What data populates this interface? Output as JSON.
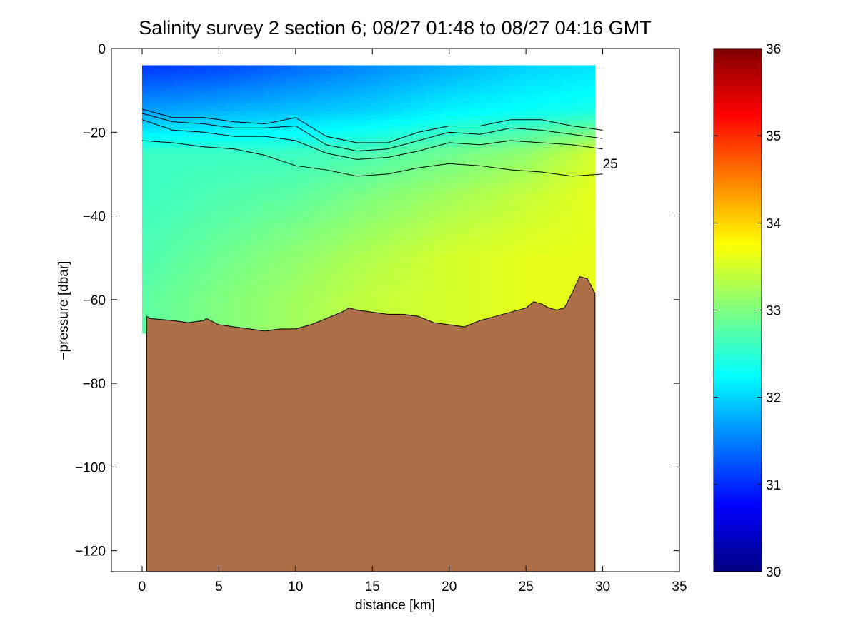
{
  "chart_data": {
    "type": "heatmap",
    "title": "Salinity survey 2 section 6; 08/27 01:48 to 08/27 04:16 GMT",
    "xlabel": "distance [km]",
    "ylabel": "−pressure [dbar]",
    "xlim": [
      -2,
      35
    ],
    "ylim": [
      -125,
      0
    ],
    "x_ticks": [
      0,
      5,
      10,
      15,
      20,
      25,
      30,
      35
    ],
    "x_tick_labels": [
      "0",
      "5",
      "10",
      "15",
      "20",
      "25",
      "30",
      "35"
    ],
    "y_ticks": [
      0,
      -20,
      -40,
      -60,
      -80,
      -100,
      -120
    ],
    "y_tick_labels": [
      "0",
      "−20",
      "−40",
      "−60",
      "−80",
      "−100",
      "−120"
    ],
    "colorbar": {
      "range": [
        30,
        36
      ],
      "ticks": [
        30,
        31,
        32,
        33,
        34,
        35,
        36
      ],
      "tick_labels": [
        "30",
        "31",
        "32",
        "33",
        "34",
        "35",
        "36"
      ],
      "colormap": "jet"
    },
    "salinity_field": {
      "x": [
        0,
        5,
        10,
        15,
        20,
        25,
        29.5
      ],
      "depth": [
        -5,
        -15,
        -25,
        -35,
        -50,
        -60
      ],
      "values": [
        [
          31.1,
          31.2,
          31.4,
          31.6,
          31.8,
          32.0,
          32.1
        ],
        [
          31.7,
          31.8,
          31.9,
          32.0,
          32.2,
          32.3,
          32.4
        ],
        [
          32.6,
          32.6,
          32.6,
          32.7,
          32.9,
          33.1,
          33.5
        ],
        [
          32.6,
          32.7,
          32.8,
          33.0,
          33.2,
          33.4,
          33.6
        ],
        [
          32.7,
          32.9,
          33.1,
          33.3,
          33.5,
          33.6,
          33.6
        ],
        [
          32.8,
          33.0,
          33.2,
          33.4,
          33.5,
          33.6,
          33.6
        ]
      ]
    },
    "contour_label": "25",
    "contour_lines": [
      {
        "x": [
          0,
          2,
          4,
          6,
          8,
          10,
          12,
          14,
          16,
          18,
          20,
          22,
          24,
          26,
          28,
          30
        ],
        "y": [
          -14.5,
          -16.5,
          -16.5,
          -17.5,
          -18.0,
          -16.5,
          -21.0,
          -22.5,
          -22.5,
          -20.0,
          -18.5,
          -18.5,
          -17.0,
          -17.0,
          -18.5,
          -19.5
        ]
      },
      {
        "x": [
          0,
          2,
          4,
          6,
          8,
          10,
          12,
          14,
          16,
          18,
          20,
          22,
          24,
          26,
          28,
          30
        ],
        "y": [
          -15.5,
          -17.5,
          -18.0,
          -19.0,
          -19.0,
          -18.5,
          -23.0,
          -24.5,
          -24.0,
          -22.0,
          -20.0,
          -20.5,
          -19.0,
          -19.5,
          -20.5,
          -21.5
        ]
      },
      {
        "x": [
          0,
          2,
          4,
          6,
          8,
          10,
          12,
          14,
          16,
          18,
          20,
          22,
          24,
          26,
          28,
          30
        ],
        "y": [
          -17.0,
          -19.5,
          -20.0,
          -21.0,
          -21.0,
          -22.0,
          -25.0,
          -26.5,
          -26.0,
          -24.5,
          -22.5,
          -23.0,
          -22.0,
          -22.5,
          -23.0,
          -24.0
        ]
      },
      {
        "x": [
          0,
          2,
          4,
          6,
          8,
          10,
          12,
          14,
          16,
          18,
          20,
          22,
          24,
          26,
          28,
          30
        ],
        "y": [
          -22.0,
          -22.5,
          -23.5,
          -24.0,
          -25.5,
          -28.0,
          -29.0,
          -30.5,
          -30.0,
          -28.5,
          -27.5,
          -28.0,
          -29.0,
          -29.5,
          -30.5,
          -30.0
        ]
      }
    ],
    "bathymetry": {
      "x": [
        0.3,
        0.5,
        2,
        3,
        4,
        4.2,
        5,
        6,
        7,
        8,
        9,
        10,
        11,
        12,
        13,
        13.5,
        14,
        15,
        16,
        17,
        18,
        19,
        20,
        21,
        22,
        23,
        24,
        25,
        25.5,
        26,
        26.5,
        27,
        27.5,
        28,
        28.5,
        29,
        29.5
      ],
      "y": [
        -64.0,
        -64.5,
        -65.0,
        -65.5,
        -65.0,
        -64.5,
        -66.0,
        -66.5,
        -67.0,
        -67.5,
        -67.0,
        -67.0,
        -66.0,
        -64.5,
        -63.0,
        -62.0,
        -62.5,
        -63.0,
        -63.5,
        -63.5,
        -64.0,
        -65.5,
        -66.0,
        -66.5,
        -65.0,
        -64.0,
        -63.0,
        -62.0,
        -60.5,
        -61.0,
        -62.0,
        -62.5,
        -62.0,
        -58.5,
        -54.5,
        -55.0,
        -58.5
      ]
    }
  }
}
